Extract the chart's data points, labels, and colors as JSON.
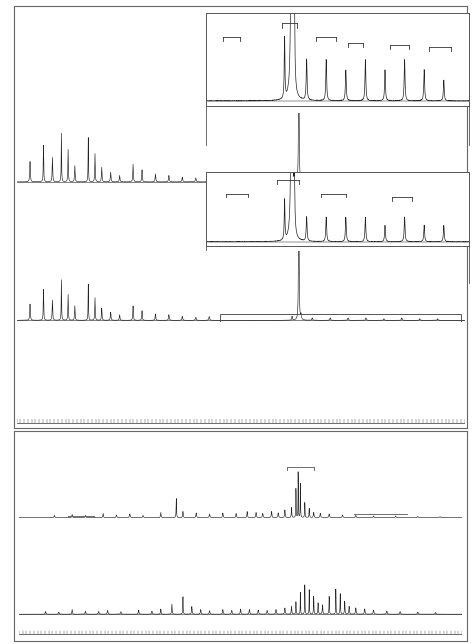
{
  "background_color": "#ffffff",
  "line_color": "#222222",
  "figure_width": 4.74,
  "figure_height": 6.44,
  "dpi": 100
}
